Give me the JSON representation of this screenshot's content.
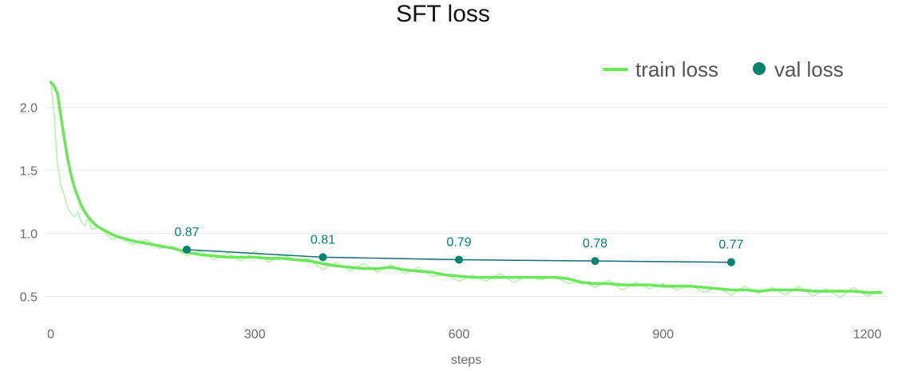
{
  "colors": {
    "train": "#6ae85a",
    "train_raw": "#b6f3a9",
    "val": "#008470",
    "val_line": "#146c78",
    "grid": "#ececec"
  },
  "chart_data": {
    "type": "line",
    "title": "SFT loss",
    "xlabel": "steps",
    "ylabel": "",
    "xlim": [
      -10,
      1230
    ],
    "ylim": [
      0.35,
      2.25
    ],
    "xticks": [
      0,
      300,
      600,
      900,
      1200
    ],
    "yticks": [
      0.5,
      1.0,
      1.5,
      2.0
    ],
    "ytick_labels": [
      "0.5",
      "1.0",
      "1.5",
      "2.0"
    ],
    "grid": "horizontal",
    "legend_position": "top-right",
    "series": [
      {
        "name": "train loss",
        "style": "smoothed",
        "x": [
          0,
          5,
          10,
          15,
          20,
          25,
          30,
          35,
          40,
          45,
          50,
          55,
          60,
          65,
          70,
          80,
          90,
          100,
          120,
          140,
          160,
          180,
          200,
          220,
          240,
          260,
          280,
          300,
          320,
          340,
          360,
          380,
          400,
          420,
          440,
          460,
          480,
          500,
          520,
          540,
          560,
          580,
          600,
          620,
          640,
          660,
          680,
          700,
          720,
          740,
          760,
          780,
          800,
          820,
          840,
          860,
          880,
          900,
          920,
          940,
          960,
          980,
          1000,
          1020,
          1040,
          1060,
          1080,
          1100,
          1120,
          1140,
          1160,
          1180,
          1200,
          1220
        ],
        "y": [
          2.2,
          2.17,
          2.11,
          1.93,
          1.75,
          1.59,
          1.46,
          1.36,
          1.29,
          1.22,
          1.17,
          1.13,
          1.1,
          1.07,
          1.05,
          1.02,
          0.99,
          0.97,
          0.94,
          0.92,
          0.9,
          0.88,
          0.85,
          0.83,
          0.82,
          0.81,
          0.81,
          0.81,
          0.8,
          0.8,
          0.79,
          0.78,
          0.76,
          0.74,
          0.73,
          0.72,
          0.72,
          0.73,
          0.71,
          0.7,
          0.69,
          0.67,
          0.66,
          0.65,
          0.65,
          0.65,
          0.65,
          0.65,
          0.65,
          0.65,
          0.64,
          0.61,
          0.6,
          0.6,
          0.59,
          0.59,
          0.59,
          0.58,
          0.58,
          0.58,
          0.57,
          0.56,
          0.55,
          0.55,
          0.54,
          0.55,
          0.55,
          0.55,
          0.54,
          0.54,
          0.54,
          0.54,
          0.53,
          0.53
        ]
      },
      {
        "name": "",
        "style": "raw",
        "x": [
          0,
          5,
          10,
          15,
          20,
          25,
          30,
          35,
          40,
          45,
          50,
          55,
          60,
          70,
          80,
          90,
          100,
          120,
          140,
          160,
          180,
          200,
          220,
          240,
          260,
          280,
          300,
          320,
          340,
          360,
          380,
          400,
          420,
          440,
          460,
          480,
          500,
          520,
          540,
          560,
          580,
          600,
          620,
          640,
          660,
          680,
          700,
          720,
          740,
          760,
          780,
          800,
          820,
          840,
          860,
          880,
          900,
          920,
          940,
          960,
          980,
          1000,
          1020,
          1040,
          1060,
          1080,
          1100,
          1120,
          1140,
          1160,
          1180,
          1200,
          1220
        ],
        "y": [
          2.2,
          1.95,
          1.55,
          1.38,
          1.3,
          1.2,
          1.16,
          1.13,
          1.17,
          1.09,
          1.06,
          1.12,
          1.03,
          1.05,
          1.0,
          0.95,
          0.97,
          0.91,
          0.95,
          0.88,
          0.9,
          0.82,
          0.86,
          0.79,
          0.84,
          0.78,
          0.86,
          0.77,
          0.83,
          0.79,
          0.8,
          0.71,
          0.77,
          0.7,
          0.76,
          0.69,
          0.75,
          0.68,
          0.73,
          0.66,
          0.67,
          0.62,
          0.67,
          0.62,
          0.68,
          0.61,
          0.66,
          0.63,
          0.66,
          0.6,
          0.62,
          0.57,
          0.63,
          0.55,
          0.61,
          0.56,
          0.6,
          0.55,
          0.59,
          0.53,
          0.57,
          0.51,
          0.58,
          0.52,
          0.57,
          0.51,
          0.58,
          0.5,
          0.56,
          0.49,
          0.57,
          0.5,
          0.55
        ]
      },
      {
        "name": "val loss",
        "style": "markers",
        "x": [
          200,
          400,
          600,
          800,
          1000
        ],
        "y": [
          0.87,
          0.81,
          0.79,
          0.78,
          0.77
        ],
        "labels": [
          "0.87",
          "0.81",
          "0.79",
          "0.78",
          "0.77"
        ]
      }
    ]
  }
}
